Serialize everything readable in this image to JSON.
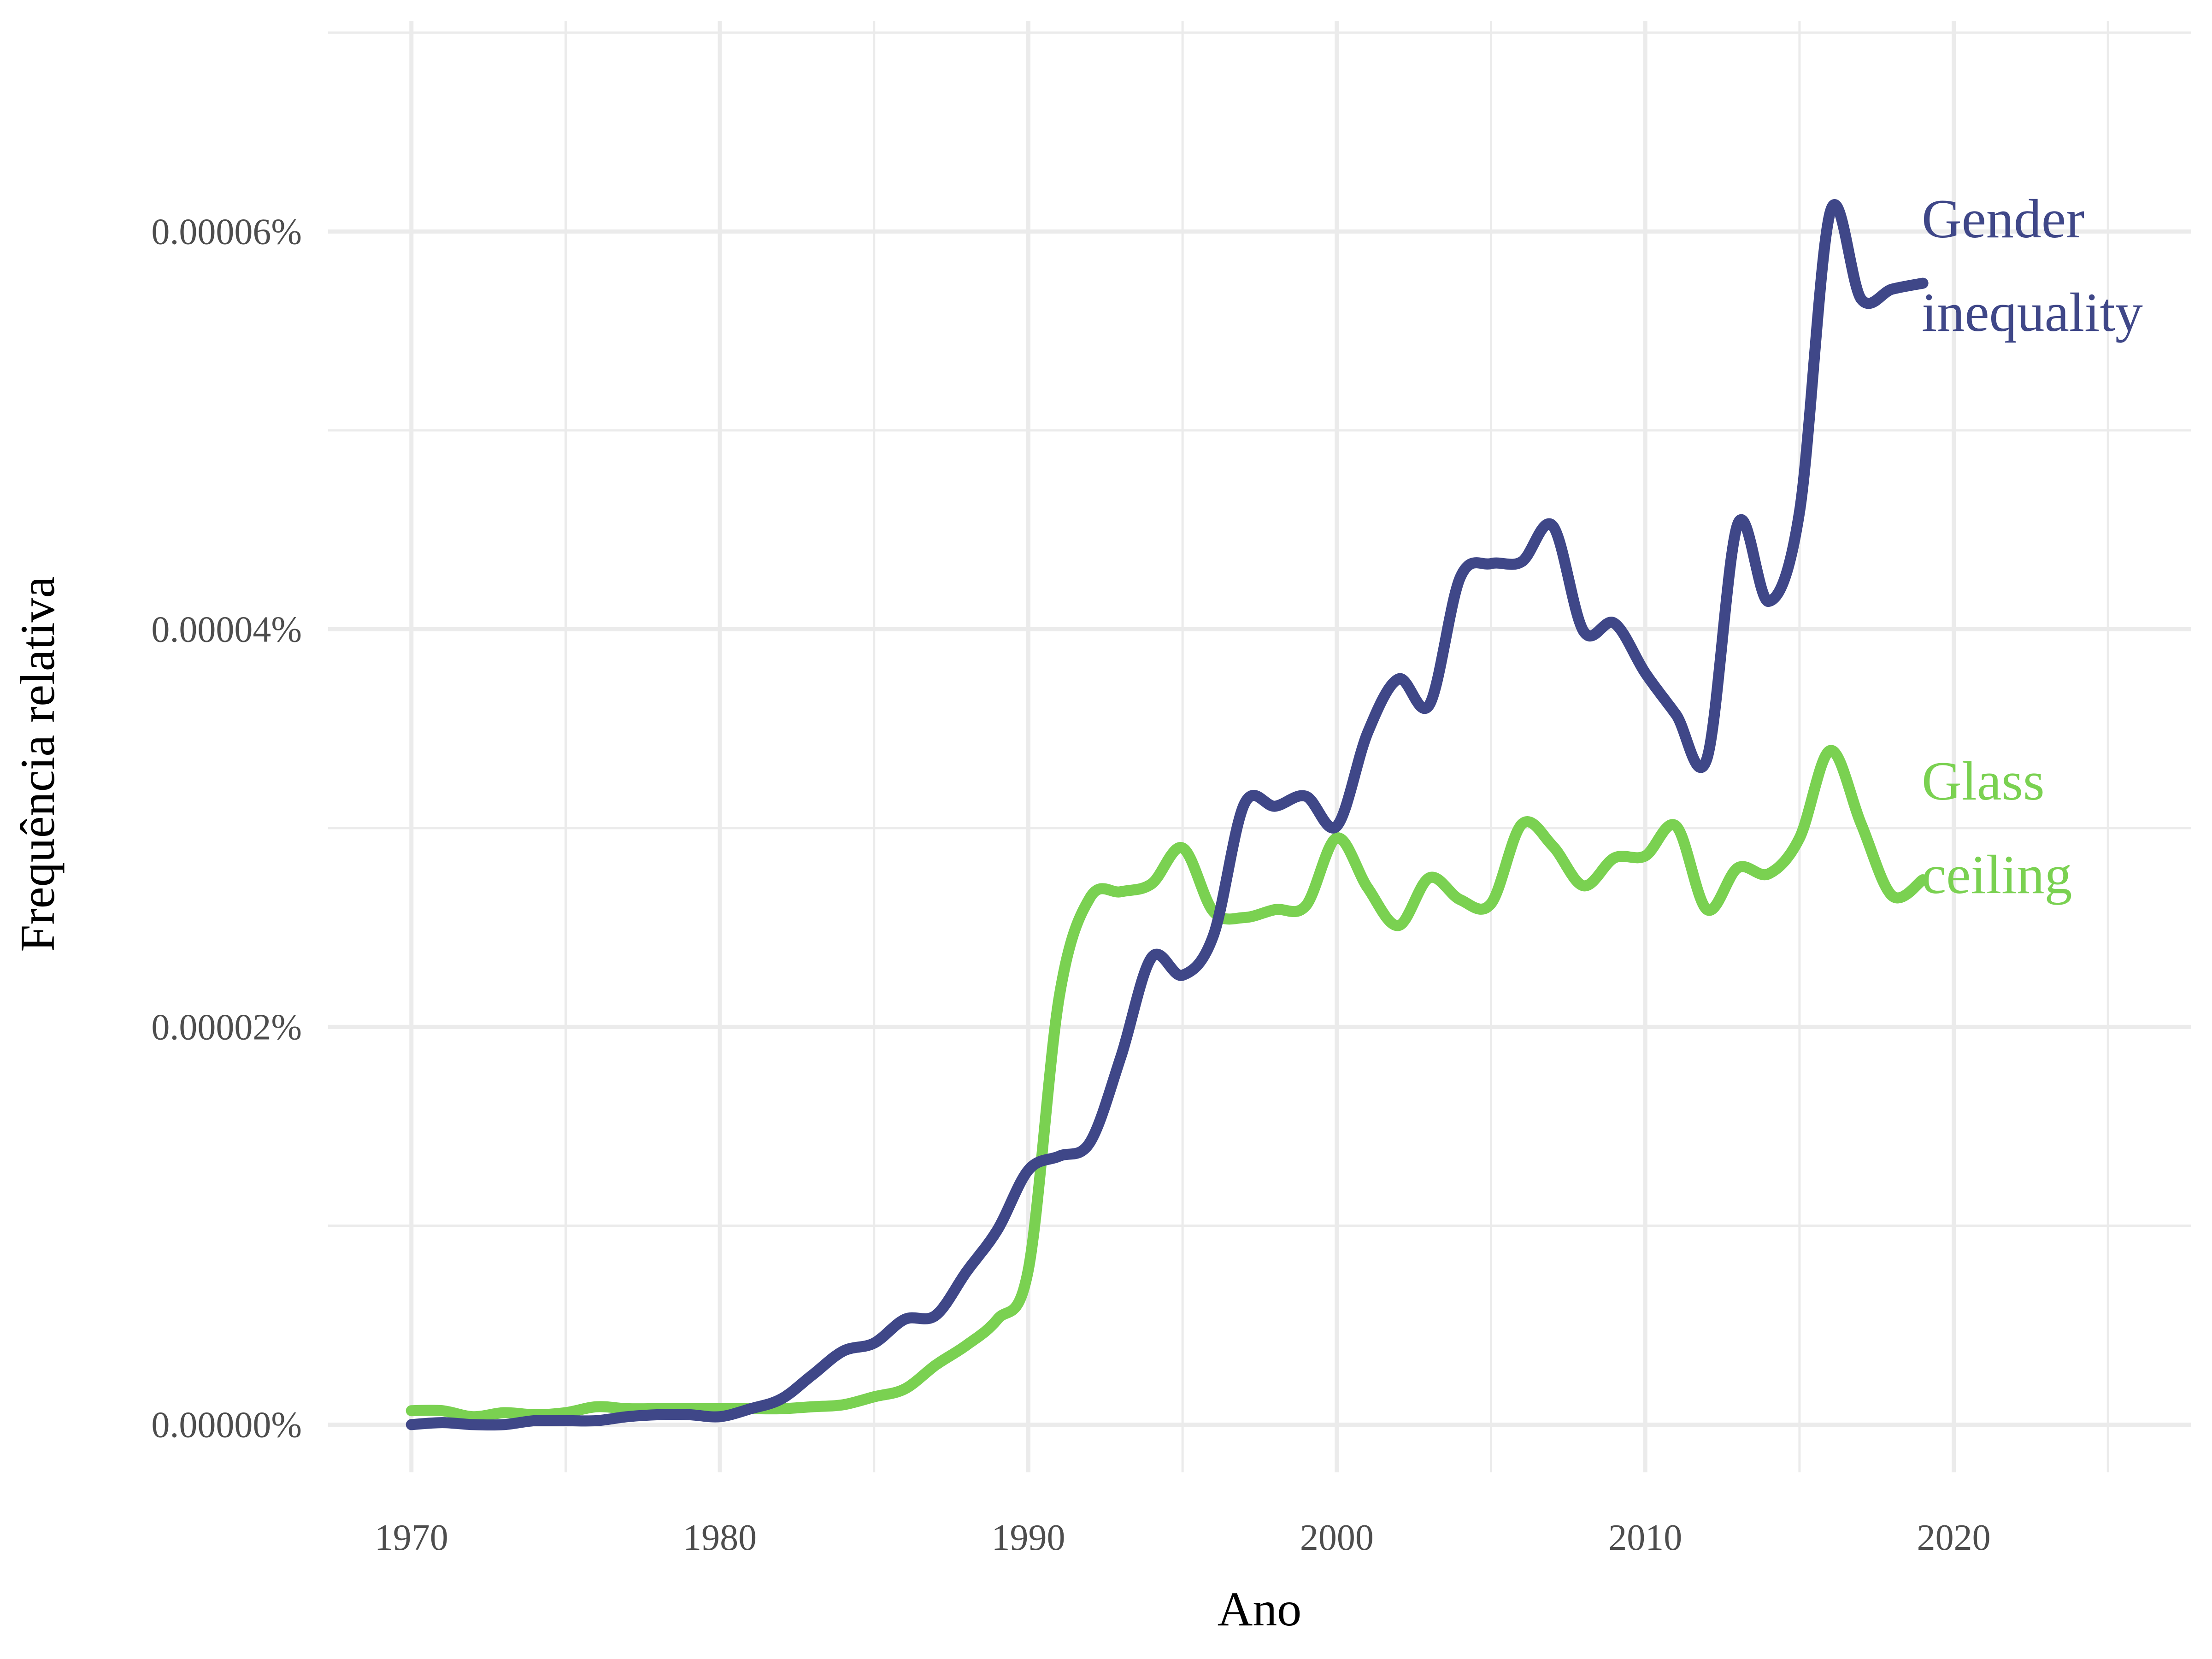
{
  "chart_data": {
    "type": "line",
    "xlabel": "Ano",
    "ylabel": "Frequência relativa",
    "xlim": [
      1967.3,
      1927.7
    ],
    "ylim": [
      -2.4e-06,
      7.06e-05
    ],
    "x_ticks": [
      1970,
      1980,
      1990,
      2000,
      2010,
      2020
    ],
    "x_tick_labels": [
      "1970",
      "1980",
      "1990",
      "2000",
      "2010",
      "2020"
    ],
    "y_ticks": [
      0,
      2e-05,
      4e-05,
      6e-05
    ],
    "y_tick_labels": [
      "0.00000%",
      "0.00002%",
      "0.00004%",
      "0.00006%"
    ],
    "grid": true,
    "legend": "direct labels at right end of lines",
    "series": [
      {
        "name": "Gender inequality",
        "label_lines": [
          "Gender",
          "inequality"
        ],
        "color": "#3f4788",
        "x": [
          1970,
          1971,
          1972,
          1973,
          1974,
          1975,
          1976,
          1977,
          1978,
          1979,
          1980,
          1981,
          1982,
          1983,
          1984,
          1985,
          1986,
          1987,
          1988,
          1989,
          1990,
          1991,
          1992,
          1993,
          1994,
          1995,
          1996,
          1997,
          1998,
          1999,
          2000,
          2001,
          2002,
          2003,
          2004,
          2005,
          2006,
          2007,
          2008,
          2009,
          2010,
          2011,
          2012,
          2013,
          2014,
          2015,
          2016,
          2017,
          2018,
          2019
        ],
        "values": [
          0.0,
          1e-07,
          0.0,
          0.0,
          2e-07,
          2e-07,
          2e-07,
          4e-07,
          5e-07,
          5e-07,
          4e-07,
          8e-07,
          1.3e-06,
          2.5e-06,
          3.7e-06,
          4.1e-06,
          5.3e-06,
          5.5e-06,
          7.7e-06,
          9.8e-06,
          1.28e-05,
          1.35e-05,
          1.42e-05,
          1.85e-05,
          2.35e-05,
          2.26e-05,
          2.46e-05,
          3.12e-05,
          3.11e-05,
          3.16e-05,
          3.01e-05,
          3.48e-05,
          3.75e-05,
          3.62e-05,
          4.26e-05,
          4.33e-05,
          4.34e-05,
          4.52e-05,
          3.99e-05,
          4.03e-05,
          3.78e-05,
          3.57e-05,
          3.35e-05,
          4.53e-05,
          4.14e-05,
          4.59e-05,
          6.1e-05,
          5.66e-05,
          5.71e-05,
          5.74e-05
        ]
      },
      {
        "name": "Glass ceiling",
        "label_lines": [
          "Glass",
          "ceiling"
        ],
        "color": "#7ad151",
        "x": [
          1970,
          1971,
          1972,
          1973,
          1974,
          1975,
          1976,
          1977,
          1978,
          1979,
          1980,
          1981,
          1982,
          1983,
          1984,
          1985,
          1986,
          1987,
          1988,
          1989,
          1990,
          1991,
          1992,
          1993,
          1994,
          1995,
          1996,
          1997,
          1998,
          1999,
          2000,
          2001,
          2002,
          2003,
          2004,
          2005,
          2006,
          2007,
          2008,
          2009,
          2010,
          2011,
          2012,
          2013,
          2014,
          2015,
          2016,
          2017,
          2018,
          2019
        ],
        "values": [
          7e-07,
          7e-07,
          4e-07,
          6e-07,
          5e-07,
          6e-07,
          9e-07,
          8e-07,
          8e-07,
          8e-07,
          8e-07,
          8e-07,
          8e-07,
          9e-07,
          1e-06,
          1.4e-06,
          1.8e-06,
          3e-06,
          4e-06,
          5.3e-06,
          7.8e-06,
          2.15e-05,
          2.65e-05,
          2.68e-05,
          2.72e-05,
          2.9e-05,
          2.58e-05,
          2.55e-05,
          2.59e-05,
          2.61e-05,
          2.95e-05,
          2.7e-05,
          2.51e-05,
          2.75e-05,
          2.64e-05,
          2.62e-05,
          3.02e-05,
          2.91e-05,
          2.71e-05,
          2.85e-05,
          2.86e-05,
          3.01e-05,
          2.59e-05,
          2.8e-05,
          2.77e-05,
          2.95e-05,
          3.39e-05,
          3.02e-05,
          2.66e-05,
          2.74e-05
        ]
      }
    ]
  }
}
